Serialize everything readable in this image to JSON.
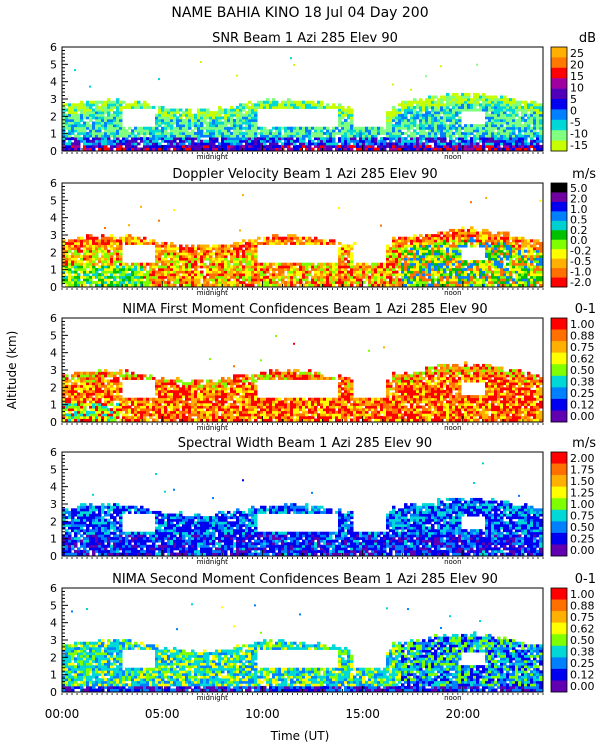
{
  "figure": {
    "title": "NAME BAHIA KINO   18 Jul 04 Day 200",
    "ylabel": "Altitude (km)",
    "xlabel": "Time (UT)",
    "x_ticks": [
      "00:00",
      "05:00",
      "10:00",
      "15:00",
      "20:00"
    ],
    "x_tick_hours": [
      0,
      5,
      10,
      15,
      20
    ],
    "xlim_hours": [
      0,
      24
    ],
    "markers": [
      {
        "label": "midnight",
        "hour": 7.5
      },
      {
        "label": "noon",
        "hour": 19.5
      }
    ]
  },
  "chart_data": [
    {
      "type": "heatmap",
      "title": "SNR Beam 1 Azi 285 Elev 90",
      "unit": "dB",
      "ylim": [
        0,
        6
      ],
      "y_ticks": [
        0,
        1,
        2,
        3,
        4,
        5,
        6
      ],
      "colorbar_labels": [
        "25",
        "20",
        "15",
        "10",
        "5",
        "0",
        "-5",
        "-10",
        "-15"
      ],
      "colorbar_colors": [
        "#ffb000",
        "#ff7800",
        "#ff0000",
        "#a000a0",
        "#5000b8",
        "#0000f0",
        "#0080ff",
        "#00d8d8",
        "#80ff80",
        "#c8ff00"
      ],
      "pattern": "snr"
    },
    {
      "type": "heatmap",
      "title": "Doppler Velocity Beam 1 Azi 285 Elev 90",
      "unit": "m/s",
      "ylim": [
        0,
        6
      ],
      "y_ticks": [
        0,
        1,
        2,
        3,
        4,
        5,
        6
      ],
      "colorbar_labels": [
        "5.0",
        "2.0",
        "1.0",
        "0.5",
        "0.2",
        "0.0",
        "-0.2",
        "-0.5",
        "-1.0",
        "-2.0"
      ],
      "colorbar_colors": [
        "#000000",
        "#7000a0",
        "#0000f0",
        "#0080ff",
        "#00d0d0",
        "#00c000",
        "#80ff00",
        "#ffff00",
        "#ffb000",
        "#ff7000",
        "#ff0000"
      ],
      "pattern": "doppler"
    },
    {
      "type": "heatmap",
      "title": "NIMA First Moment Confidences Beam 1 Azi 285 Elev 90",
      "unit": "0-1",
      "ylim": [
        0,
        6
      ],
      "y_ticks": [
        0,
        1,
        2,
        3,
        4,
        5,
        6
      ],
      "colorbar_labels": [
        "1.00",
        "0.88",
        "0.75",
        "0.62",
        "0.50",
        "0.38",
        "0.25",
        "0.12",
        "0.00"
      ],
      "colorbar_colors": [
        "#ff0000",
        "#ff7000",
        "#ffb000",
        "#ffff00",
        "#80ff00",
        "#00d8d8",
        "#0080ff",
        "#0000f0",
        "#6000b0"
      ],
      "pattern": "conf1"
    },
    {
      "type": "heatmap",
      "title": "Spectral Width Beam 1 Azi 285 Elev 90",
      "unit": "m/s",
      "ylim": [
        0,
        6
      ],
      "y_ticks": [
        0,
        1,
        2,
        3,
        4,
        5,
        6
      ],
      "colorbar_labels": [
        "2.00",
        "1.75",
        "1.50",
        "1.25",
        "1.00",
        "0.75",
        "0.50",
        "0.25",
        "0.00"
      ],
      "colorbar_colors": [
        "#ff0000",
        "#ff7000",
        "#ffb000",
        "#ffff00",
        "#80ff00",
        "#00d8d8",
        "#0080ff",
        "#0000f0",
        "#6000b0"
      ],
      "pattern": "width"
    },
    {
      "type": "heatmap",
      "title": "NIMA Second Moment Confidences Beam 1 Azi 285 Elev 90",
      "unit": "0-1",
      "ylim": [
        0,
        6
      ],
      "y_ticks": [
        0,
        1,
        2,
        3,
        4,
        5,
        6
      ],
      "colorbar_labels": [
        "1.00",
        "0.88",
        "0.75",
        "0.62",
        "0.50",
        "0.38",
        "0.25",
        "0.12",
        "0.00"
      ],
      "colorbar_colors": [
        "#ff0000",
        "#ff7000",
        "#ffb000",
        "#ffff00",
        "#80ff00",
        "#00d8d8",
        "#0080ff",
        "#0000f0",
        "#6000b0"
      ],
      "pattern": "conf2"
    }
  ]
}
